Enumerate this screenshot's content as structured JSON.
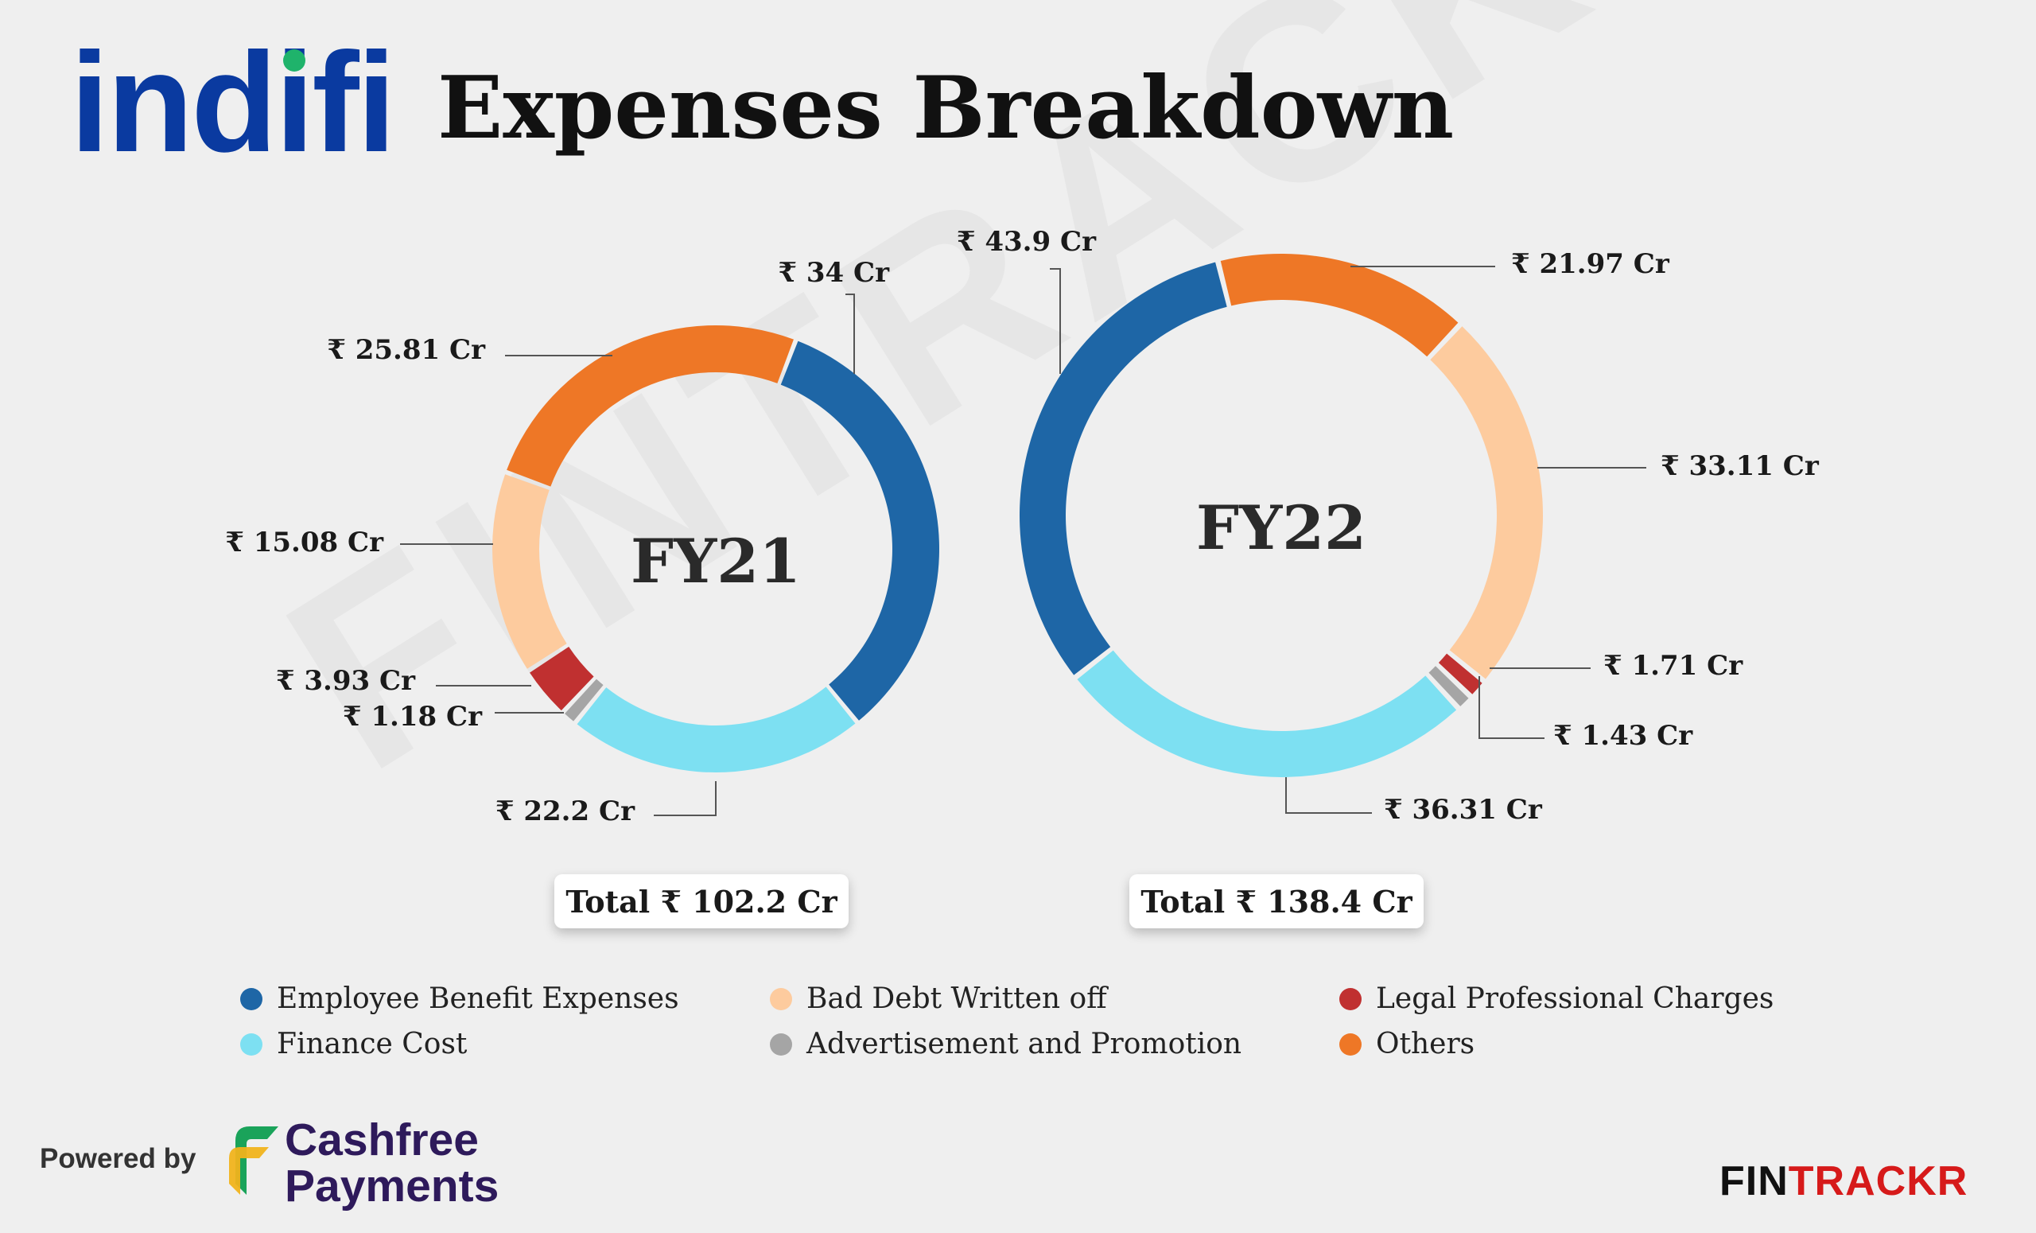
{
  "header": {
    "brand": "indifi",
    "title": "Expenses Breakdown"
  },
  "watermark": "FINTRACKR",
  "chart_data": [
    {
      "type": "donut",
      "title": "FY21",
      "total_label": "Total ₹ 102.2 Cr",
      "slices": [
        {
          "category": "Employee Benefit Expenses",
          "value": 34,
          "label": "₹ 34 Cr"
        },
        {
          "category": "Finance Cost",
          "value": 22.2,
          "label": "₹ 22.2 Cr"
        },
        {
          "category": "Advertisement and Promotion",
          "value": 1.18,
          "label": "₹ 1.18 Cr"
        },
        {
          "category": "Legal Professional Charges",
          "value": 3.93,
          "label": "₹ 3.93 Cr"
        },
        {
          "category": "Bad Debt Written off",
          "value": 15.08,
          "label": "₹ 15.08 Cr"
        },
        {
          "category": "Others",
          "value": 25.81,
          "label": "₹ 25.81 Cr"
        }
      ]
    },
    {
      "type": "donut",
      "title": "FY22",
      "total_label": "Total ₹ 138.4 Cr",
      "slices": [
        {
          "category": "Others",
          "value": 21.97,
          "label": "₹ 21.97 Cr"
        },
        {
          "category": "Bad Debt Written off",
          "value": 33.11,
          "label": "₹ 33.11 Cr"
        },
        {
          "category": "Legal Professional Charges",
          "value": 1.71,
          "label": "₹ 1.71 Cr"
        },
        {
          "category": "Advertisement and Promotion",
          "value": 1.43,
          "label": "₹ 1.43 Cr"
        },
        {
          "category": "Finance Cost",
          "value": 36.31,
          "label": "₹ 36.31 Cr"
        },
        {
          "category": "Employee Benefit Expenses",
          "value": 43.9,
          "label": "₹ 43.9 Cr"
        }
      ]
    }
  ],
  "legend": [
    {
      "label": "Employee Benefit Expenses",
      "color": "#1e66a6"
    },
    {
      "label": "Finance Cost",
      "color": "#7de0f2"
    },
    {
      "label": "Bad Debt Written off",
      "color": "#fdcb9e"
    },
    {
      "label": "Advertisement and Promotion",
      "color": "#a5a5a5"
    },
    {
      "label": "Legal Professional Charges",
      "color": "#c03030"
    },
    {
      "label": "Others",
      "color": "#ee7726"
    }
  ],
  "footer": {
    "powered_by": "Powered by",
    "sponsor_line1": "Cashfree",
    "sponsor_line2": "Payments",
    "brand_part1": "FIN",
    "brand_part2": "TRACKR"
  }
}
